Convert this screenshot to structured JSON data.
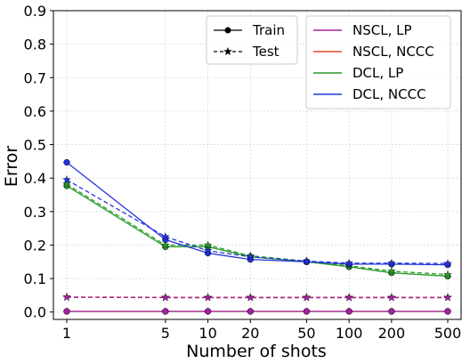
{
  "chart_data": {
    "type": "line",
    "xlabel": "Number of shots",
    "ylabel": "Error",
    "xscale": "log",
    "ylim": [
      0,
      0.9
    ],
    "grid": true,
    "x": [
      1,
      5,
      10,
      20,
      50,
      100,
      200,
      500
    ],
    "x_tick_labels": [
      "1",
      "5",
      "10",
      "20",
      "50",
      "100",
      "200",
      "500"
    ],
    "y_ticks": [
      0.0,
      0.1,
      0.2,
      0.3,
      0.4,
      0.5,
      0.6,
      0.7,
      0.8,
      0.9
    ],
    "y_tick_labels": [
      "0.0",
      "0.1",
      "0.2",
      "0.3",
      "0.4",
      "0.5",
      "0.6",
      "0.7",
      "0.8",
      "0.9"
    ],
    "style_legend": {
      "placement": "top-center",
      "entries": [
        {
          "label": "Train",
          "marker": "circle",
          "linestyle": "solid"
        },
        {
          "label": "Test",
          "marker": "star",
          "linestyle": "dashed"
        }
      ]
    },
    "method_legend": {
      "placement": "top-right",
      "entries": [
        {
          "label": "NSCL, LP",
          "color": "#a0239f"
        },
        {
          "label": "NSCL, NCCC",
          "color": "#e8452c"
        },
        {
          "label": "DCL, LP",
          "color": "#2a9a2a"
        },
        {
          "label": "DCL, NCCC",
          "color": "#2233dd"
        }
      ]
    },
    "series": [
      {
        "method": "NSCL, NCCC",
        "split": "Train",
        "color": "#e8452c",
        "values": [
          0.002,
          0.002,
          0.002,
          0.002,
          0.002,
          0.002,
          0.002,
          0.002
        ]
      },
      {
        "method": "NSCL, LP",
        "split": "Train",
        "color": "#a0239f",
        "values": [
          0.002,
          0.002,
          0.002,
          0.002,
          0.002,
          0.002,
          0.002,
          0.002
        ]
      },
      {
        "method": "NSCL, NCCC",
        "split": "Test",
        "color": "#e8452c",
        "values": [
          0.045,
          0.044,
          0.044,
          0.044,
          0.044,
          0.044,
          0.044,
          0.044
        ]
      },
      {
        "method": "NSCL, LP",
        "split": "Test",
        "color": "#a0239f",
        "values": [
          0.044,
          0.043,
          0.043,
          0.043,
          0.043,
          0.043,
          0.043,
          0.043
        ]
      },
      {
        "method": "DCL, LP",
        "split": "Train",
        "color": "#2a9a2a",
        "values": [
          0.377,
          0.195,
          0.195,
          0.165,
          0.15,
          0.135,
          0.117,
          0.107
        ]
      },
      {
        "method": "DCL, LP",
        "split": "Test",
        "color": "#2a9a2a",
        "values": [
          0.382,
          0.2,
          0.2,
          0.168,
          0.152,
          0.138,
          0.122,
          0.112
        ]
      },
      {
        "method": "DCL, NCCC",
        "split": "Train",
        "color": "#2233dd",
        "values": [
          0.447,
          0.216,
          0.176,
          0.157,
          0.15,
          0.143,
          0.143,
          0.141
        ]
      },
      {
        "method": "DCL, NCCC",
        "split": "Test",
        "color": "#2233dd",
        "values": [
          0.395,
          0.225,
          0.183,
          0.165,
          0.152,
          0.146,
          0.146,
          0.145
        ]
      }
    ]
  }
}
